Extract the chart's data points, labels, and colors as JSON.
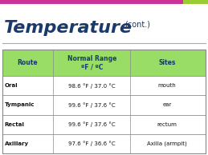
{
  "title": "Temperature",
  "subtitle": "(cont.)",
  "title_color": "#1a3a6b",
  "subtitle_color": "#1a3a6b",
  "top_bar_colors": [
    "#cc3399",
    "#99cc33"
  ],
  "header_bg": "#99dd66",
  "header_text_color": "#1a3a6b",
  "table_border_color": "#888888",
  "row_bg": "#ffffff",
  "col_headers": [
    "Route",
    "Normal Range\nºF / ºC",
    "Sites"
  ],
  "rows": [
    [
      "Oral",
      "98.6 °F / 37.0 °C",
      "mouth"
    ],
    [
      "Tympanic",
      "99.6 °F / 37.6 °C",
      "ear"
    ],
    [
      "Rectal",
      "99.6 °F / 37.6 °C",
      "rectum"
    ],
    [
      "Axillary",
      "97.6 °F / 36.6 °C",
      "Axilla (armpit)"
    ]
  ],
  "bg_color": "#ffffff",
  "fig_width": 2.59,
  "fig_height": 1.94,
  "dpi": 100
}
